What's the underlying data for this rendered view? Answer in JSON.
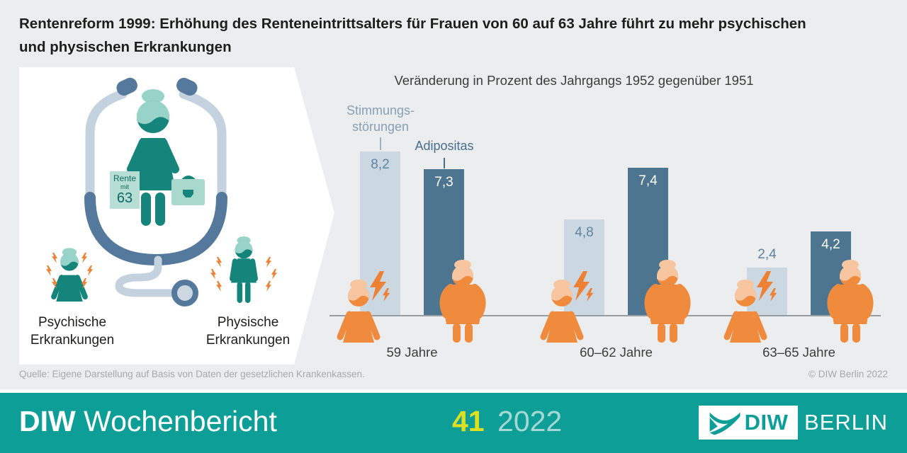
{
  "title": {
    "line1": "Rentenreform 1999: Erhöhung des Renteneintrittsalters für Frauen von 60 auf 63 Jahre führt zu mehr psychischen",
    "line2": "und physischen Erkrankungen"
  },
  "illustration": {
    "sign_line1": "Rente",
    "sign_line2": "mit",
    "sign_line3": "63",
    "label_psychisch": "Psychische Erkrankungen",
    "label_physisch": "Physische Erkrankungen"
  },
  "chart": {
    "subtitle": "Veränderung in Prozent des Jahrgangs 1952 gegenüber 1951",
    "legend_light_line1": "Stimmungs-",
    "legend_light_line2": "störungen",
    "legend_dark": "Adipositas"
  },
  "chart_data": {
    "type": "bar",
    "title": "Veränderung in Prozent des Jahrgangs 1952 gegenüber 1951",
    "categories": [
      "59 Jahre",
      "60–62 Jahre",
      "63–65 Jahre"
    ],
    "series": [
      {
        "name": "Stimmungsstörungen",
        "slug": "stimmungsstoerungen",
        "values": [
          8.2,
          4.8,
          2.4
        ],
        "color": "#cbd8e2",
        "label_color": "#5e83a1"
      },
      {
        "name": "Adipositas",
        "slug": "adipositas",
        "values": [
          7.3,
          7.4,
          4.2
        ],
        "color": "#4d7590",
        "label_color": "#ffffff"
      }
    ],
    "unit": "Prozent",
    "decimal_separator": ",",
    "ylim": [
      0,
      9
    ],
    "grid": false,
    "legend_position": "above first group"
  },
  "source": {
    "text": "Quelle: Eigene Darstellung auf Basis von Daten der gesetzlichen Krankenkassen.",
    "copyright": "© DIW Berlin 2022"
  },
  "footer": {
    "brand_bold": "DIW",
    "brand_regular": "Wochenbericht",
    "issue_number": "41",
    "issue_year": "2022",
    "logo_text_diw": "DIW",
    "logo_text_berlin": "BERLIN"
  },
  "colors": {
    "background": "#ecedee",
    "footer_teal": "#0d9f97",
    "bar_light": "#cbd8e2",
    "bar_dark": "#4d7590",
    "orange_figure": "#f08b3e",
    "orange_hair": "#f7c6a0",
    "bolt_orange": "#ee8133",
    "teal_figure": "#15857b",
    "teal_hair": "#98d3c9",
    "stethoscope_light": "#c4d1de",
    "stethoscope_dark": "#54799c",
    "issue_yellow": "#dde021",
    "issue_year_teal": "#a5d8d4"
  }
}
